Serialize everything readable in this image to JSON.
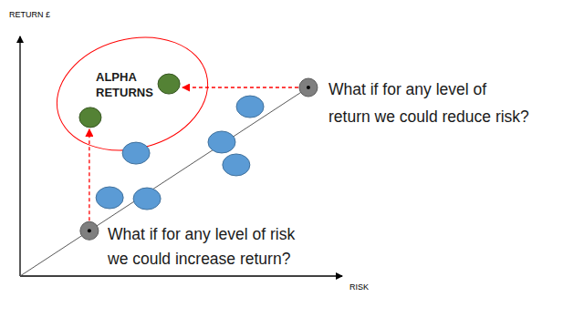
{
  "chart_data": {
    "type": "scatter",
    "x_label": "RISK",
    "y_label": "RETURN £",
    "xlim": [
      0,
      100
    ],
    "ylim": [
      0,
      100
    ],
    "xticks": [],
    "yticks": [],
    "tick_labels": false,
    "grid": false,
    "series": [
      {
        "type": "line",
        "color": "#595959",
        "line_style": "solid",
        "x": [
          0,
          89.5
        ],
        "values": [
          0,
          78.7
        ]
      },
      {
        "type": "scatter",
        "color": "#5b9bd5",
        "marker": "ellipse",
        "x": [
          27.8,
          39.4,
          36.0,
          62.6,
          67.1,
          71.4
        ],
        "values": [
          32.7,
          32.3,
          51.3,
          55.9,
          46.4,
          70.7
        ]
      },
      {
        "type": "scatter",
        "color": "#548235",
        "marker": "ellipse",
        "x": [
          21.8,
          46.2
        ],
        "values": [
          66.2,
          80.2
        ]
      },
      {
        "type": "scatter",
        "color": "#7f7f7f",
        "marker": "centre-dot",
        "x": [
          21.5,
          89.5
        ],
        "values": [
          18.9,
          78.7
        ]
      }
    ],
    "annotations": [
      {
        "text": [
          "ALPHA",
          "RETURNS"
        ]
      },
      {
        "text": [
          "What if for any level of",
          "return we could reduce risk?"
        ]
      },
      {
        "text": [
          "What if for any level of risk",
          "we could increase return?"
        ]
      }
    ]
  }
}
